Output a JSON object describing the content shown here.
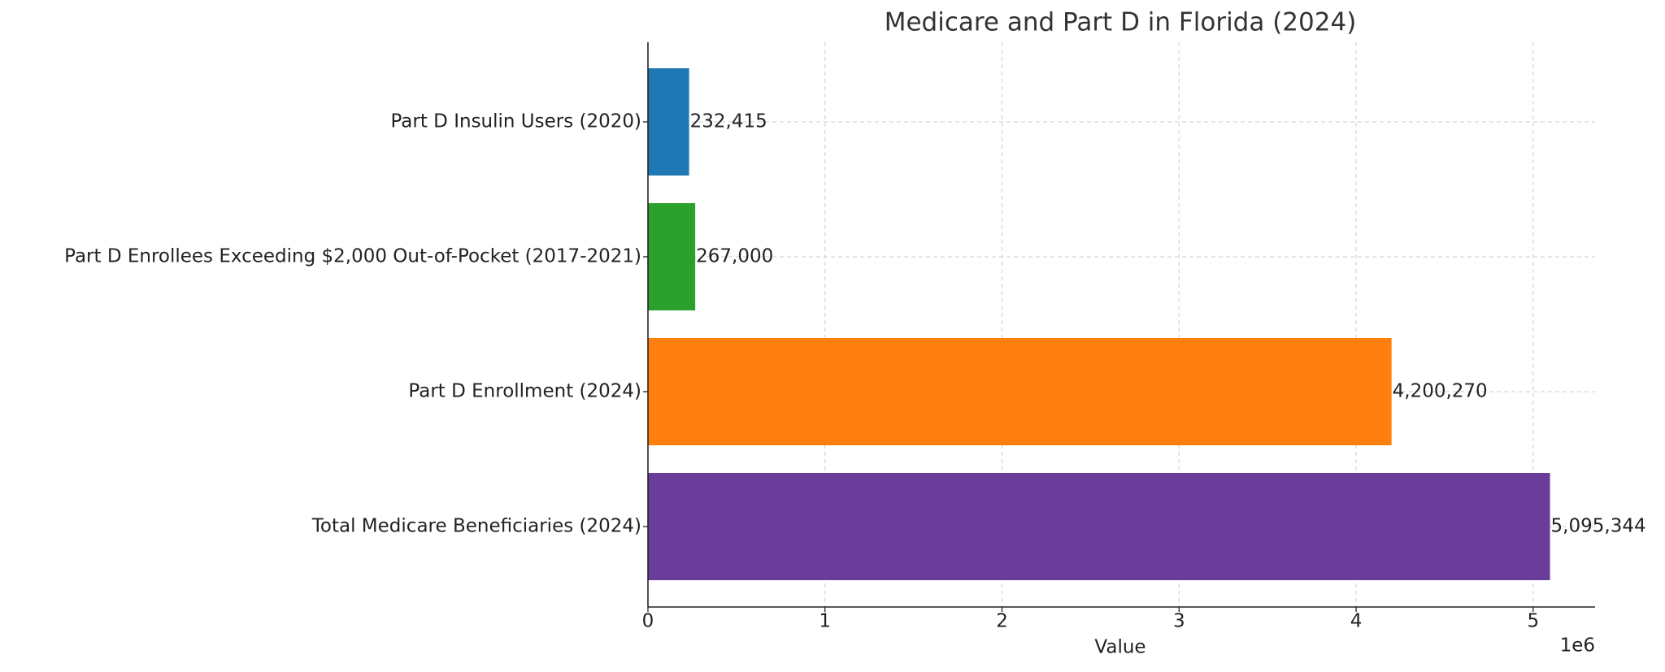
{
  "chart_data": {
    "type": "barh",
    "title": "Medicare and Part D in Florida (2024)",
    "x_label": "Value",
    "x_offset_label": "1e6",
    "categories": [
      "Part D Insulin Users (2020)",
      "Part D Enrollees Exceeding $2,000 Out-of-Pocket (2017-2021)",
      "Part D Enrollment (2024)",
      "Total Medicare Beneficiaries (2024)"
    ],
    "values": [
      232415,
      267000,
      4200270,
      5095344
    ],
    "value_labels": [
      "232,415",
      "267,000",
      "4,200,270",
      "5,095,344"
    ],
    "colors": [
      "#1f77b4",
      "#2ca02c",
      "#ff7f0e",
      "#6a3d9a"
    ],
    "xlim": [
      0,
      5350000
    ],
    "xticks": [
      {
        "value": 0,
        "label": "0"
      },
      {
        "value": 1000000,
        "label": "1"
      },
      {
        "value": 2000000,
        "label": "2"
      },
      {
        "value": 3000000,
        "label": "3"
      },
      {
        "value": 4000000,
        "label": "4"
      },
      {
        "value": 5000000,
        "label": "5"
      }
    ],
    "grid": true
  }
}
